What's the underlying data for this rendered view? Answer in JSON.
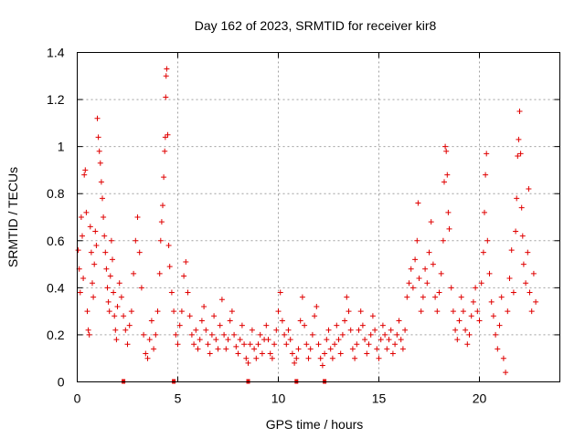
{
  "chart_data": {
    "type": "scatter",
    "title": "Day 162 of 2023, SRMTID for receiver kir8",
    "xlabel": "GPS time / hours",
    "ylabel": "SRMTID / TECUs",
    "xlim": [
      0,
      24
    ],
    "ylim": [
      0,
      1.4
    ],
    "xticks": [
      0,
      5,
      10,
      15,
      20
    ],
    "yticks": [
      0,
      0.2,
      0.4,
      0.6,
      0.8,
      1,
      1.2,
      1.4
    ],
    "xtick_labels": [
      "0",
      "5",
      "10",
      "15",
      "20"
    ],
    "ytick_labels": [
      "0",
      "0.2",
      "0.4",
      "0.6",
      "0.8",
      "1",
      "1.2",
      "1.4"
    ],
    "grid": true,
    "marker": "+",
    "color": "#e00000",
    "series": [
      {
        "name": "SRMTID",
        "points": [
          [
            0.05,
            0.56
          ],
          [
            0.1,
            0.48
          ],
          [
            0.15,
            0.38
          ],
          [
            0.2,
            0.7
          ],
          [
            0.25,
            0.62
          ],
          [
            0.3,
            0.44
          ],
          [
            0.35,
            0.88
          ],
          [
            0.4,
            0.9
          ],
          [
            0.45,
            0.72
          ],
          [
            0.5,
            0.3
          ],
          [
            0.55,
            0.22
          ],
          [
            0.6,
            0.2
          ],
          [
            0.65,
            0.66
          ],
          [
            0.7,
            0.55
          ],
          [
            0.75,
            0.42
          ],
          [
            0.8,
            0.36
          ],
          [
            0.85,
            0.5
          ],
          [
            0.9,
            0.64
          ],
          [
            0.95,
            0.58
          ],
          [
            1.0,
            1.12
          ],
          [
            1.05,
            1.04
          ],
          [
            1.1,
            0.98
          ],
          [
            1.15,
            0.93
          ],
          [
            1.2,
            0.85
          ],
          [
            1.25,
            0.78
          ],
          [
            1.3,
            0.7
          ],
          [
            1.35,
            0.62
          ],
          [
            1.4,
            0.55
          ],
          [
            1.45,
            0.48
          ],
          [
            1.5,
            0.4
          ],
          [
            1.55,
            0.34
          ],
          [
            1.6,
            0.3
          ],
          [
            1.65,
            0.45
          ],
          [
            1.7,
            0.6
          ],
          [
            1.75,
            0.52
          ],
          [
            1.8,
            0.38
          ],
          [
            1.85,
            0.28
          ],
          [
            1.9,
            0.22
          ],
          [
            1.95,
            0.18
          ],
          [
            2.0,
            0.32
          ],
          [
            2.1,
            0.42
          ],
          [
            2.2,
            0.36
          ],
          [
            2.3,
            0.28
          ],
          [
            2.4,
            0.22
          ],
          [
            2.5,
            0.16
          ],
          [
            2.6,
            0.24
          ],
          [
            2.7,
            0.3
          ],
          [
            2.8,
            0.46
          ],
          [
            2.9,
            0.6
          ],
          [
            3.0,
            0.7
          ],
          [
            3.1,
            0.55
          ],
          [
            3.2,
            0.4
          ],
          [
            3.3,
            0.2
          ],
          [
            3.4,
            0.12
          ],
          [
            3.5,
            0.1
          ],
          [
            3.6,
            0.18
          ],
          [
            3.7,
            0.26
          ],
          [
            3.8,
            0.14
          ],
          [
            3.9,
            0.2
          ],
          [
            4.0,
            0.3
          ],
          [
            4.1,
            0.46
          ],
          [
            4.15,
            0.6
          ],
          [
            4.2,
            0.68
          ],
          [
            4.25,
            0.75
          ],
          [
            4.3,
            0.87
          ],
          [
            4.35,
            0.98
          ],
          [
            4.38,
            1.04
          ],
          [
            4.4,
            1.21
          ],
          [
            4.42,
            1.3
          ],
          [
            4.45,
            1.33
          ],
          [
            4.5,
            1.05
          ],
          [
            4.55,
            0.58
          ],
          [
            4.6,
            0.49
          ],
          [
            4.7,
            0.38
          ],
          [
            4.8,
            0.3
          ],
          [
            4.9,
            0.2
          ],
          [
            5.0,
            0.16
          ],
          [
            5.1,
            0.24
          ],
          [
            5.2,
            0.3
          ],
          [
            5.3,
            0.45
          ],
          [
            5.4,
            0.51
          ],
          [
            5.5,
            0.38
          ],
          [
            5.6,
            0.28
          ],
          [
            5.7,
            0.2
          ],
          [
            5.8,
            0.16
          ],
          [
            5.9,
            0.22
          ],
          [
            6.0,
            0.14
          ],
          [
            6.1,
            0.18
          ],
          [
            6.2,
            0.26
          ],
          [
            6.3,
            0.32
          ],
          [
            6.4,
            0.22
          ],
          [
            6.5,
            0.16
          ],
          [
            6.6,
            0.12
          ],
          [
            6.7,
            0.2
          ],
          [
            6.8,
            0.28
          ],
          [
            6.9,
            0.18
          ],
          [
            7.0,
            0.14
          ],
          [
            7.1,
            0.24
          ],
          [
            7.2,
            0.35
          ],
          [
            7.3,
            0.2
          ],
          [
            7.4,
            0.14
          ],
          [
            7.5,
            0.18
          ],
          [
            7.6,
            0.26
          ],
          [
            7.7,
            0.3
          ],
          [
            7.8,
            0.2
          ],
          [
            7.9,
            0.15
          ],
          [
            8.0,
            0.12
          ],
          [
            8.1,
            0.18
          ],
          [
            8.2,
            0.24
          ],
          [
            8.3,
            0.16
          ],
          [
            8.4,
            0.1
          ],
          [
            8.5,
            0.08
          ],
          [
            8.6,
            0.16
          ],
          [
            8.7,
            0.22
          ],
          [
            8.8,
            0.14
          ],
          [
            8.9,
            0.1
          ],
          [
            9.0,
            0.16
          ],
          [
            9.1,
            0.2
          ],
          [
            9.2,
            0.12
          ],
          [
            9.3,
            0.18
          ],
          [
            9.4,
            0.24
          ],
          [
            9.5,
            0.18
          ],
          [
            9.6,
            0.12
          ],
          [
            9.7,
            0.1
          ],
          [
            9.8,
            0.16
          ],
          [
            9.9,
            0.22
          ],
          [
            10.0,
            0.3
          ],
          [
            10.1,
            0.38
          ],
          [
            10.2,
            0.26
          ],
          [
            10.3,
            0.2
          ],
          [
            10.4,
            0.16
          ],
          [
            10.5,
            0.22
          ],
          [
            10.6,
            0.18
          ],
          [
            10.7,
            0.12
          ],
          [
            10.8,
            0.08
          ],
          [
            10.9,
            0.1
          ],
          [
            11.0,
            0.14
          ],
          [
            11.1,
            0.26
          ],
          [
            11.2,
            0.36
          ],
          [
            11.3,
            0.24
          ],
          [
            11.4,
            0.16
          ],
          [
            11.5,
            0.1
          ],
          [
            11.6,
            0.14
          ],
          [
            11.7,
            0.2
          ],
          [
            11.8,
            0.28
          ],
          [
            11.9,
            0.32
          ],
          [
            12.0,
            0.16
          ],
          [
            12.1,
            0.1
          ],
          [
            12.2,
            0.07
          ],
          [
            12.3,
            0.12
          ],
          [
            12.4,
            0.18
          ],
          [
            12.5,
            0.22
          ],
          [
            12.6,
            0.14
          ],
          [
            12.7,
            0.1
          ],
          [
            12.8,
            0.16
          ],
          [
            12.9,
            0.24
          ],
          [
            13.0,
            0.18
          ],
          [
            13.1,
            0.12
          ],
          [
            13.2,
            0.2
          ],
          [
            13.3,
            0.26
          ],
          [
            13.4,
            0.36
          ],
          [
            13.5,
            0.3
          ],
          [
            13.6,
            0.22
          ],
          [
            13.7,
            0.14
          ],
          [
            13.8,
            0.1
          ],
          [
            13.9,
            0.16
          ],
          [
            14.0,
            0.22
          ],
          [
            14.1,
            0.3
          ],
          [
            14.2,
            0.24
          ],
          [
            14.3,
            0.18
          ],
          [
            14.4,
            0.12
          ],
          [
            14.5,
            0.16
          ],
          [
            14.6,
            0.2
          ],
          [
            14.7,
            0.28
          ],
          [
            14.8,
            0.22
          ],
          [
            14.9,
            0.14
          ],
          [
            15.0,
            0.1
          ],
          [
            15.1,
            0.18
          ],
          [
            15.2,
            0.24
          ],
          [
            15.3,
            0.2
          ],
          [
            15.4,
            0.14
          ],
          [
            15.5,
            0.18
          ],
          [
            15.6,
            0.22
          ],
          [
            15.7,
            0.12
          ],
          [
            15.8,
            0.16
          ],
          [
            15.9,
            0.2
          ],
          [
            16.0,
            0.26
          ],
          [
            16.1,
            0.18
          ],
          [
            16.2,
            0.14
          ],
          [
            16.3,
            0.22
          ],
          [
            16.4,
            0.36
          ],
          [
            16.5,
            0.42
          ],
          [
            16.6,
            0.48
          ],
          [
            16.7,
            0.4
          ],
          [
            16.8,
            0.52
          ],
          [
            16.9,
            0.6
          ],
          [
            16.95,
            0.76
          ],
          [
            17.0,
            0.44
          ],
          [
            17.1,
            0.3
          ],
          [
            17.2,
            0.36
          ],
          [
            17.3,
            0.48
          ],
          [
            17.4,
            0.42
          ],
          [
            17.5,
            0.55
          ],
          [
            17.6,
            0.68
          ],
          [
            17.7,
            0.5
          ],
          [
            17.8,
            0.36
          ],
          [
            17.9,
            0.3
          ],
          [
            18.0,
            0.38
          ],
          [
            18.1,
            0.46
          ],
          [
            18.2,
            0.6
          ],
          [
            18.25,
            0.85
          ],
          [
            18.3,
            1.0
          ],
          [
            18.35,
            0.98
          ],
          [
            18.4,
            0.88
          ],
          [
            18.45,
            0.72
          ],
          [
            18.5,
            0.65
          ],
          [
            18.6,
            0.4
          ],
          [
            18.7,
            0.3
          ],
          [
            18.8,
            0.22
          ],
          [
            18.9,
            0.18
          ],
          [
            19.0,
            0.26
          ],
          [
            19.1,
            0.36
          ],
          [
            19.2,
            0.3
          ],
          [
            19.3,
            0.22
          ],
          [
            19.4,
            0.16
          ],
          [
            19.5,
            0.2
          ],
          [
            19.6,
            0.28
          ],
          [
            19.7,
            0.34
          ],
          [
            19.8,
            0.4
          ],
          [
            19.9,
            0.3
          ],
          [
            20.0,
            0.26
          ],
          [
            20.1,
            0.42
          ],
          [
            20.2,
            0.55
          ],
          [
            20.25,
            0.72
          ],
          [
            20.3,
            0.88
          ],
          [
            20.35,
            0.97
          ],
          [
            20.4,
            0.6
          ],
          [
            20.5,
            0.46
          ],
          [
            20.6,
            0.34
          ],
          [
            20.7,
            0.28
          ],
          [
            20.8,
            0.2
          ],
          [
            20.9,
            0.14
          ],
          [
            21.0,
            0.24
          ],
          [
            21.1,
            0.36
          ],
          [
            21.2,
            0.1
          ],
          [
            21.3,
            0.04
          ],
          [
            21.4,
            0.3
          ],
          [
            21.5,
            0.44
          ],
          [
            21.6,
            0.56
          ],
          [
            21.7,
            0.38
          ],
          [
            21.8,
            0.64
          ],
          [
            21.85,
            0.78
          ],
          [
            21.9,
            0.96
          ],
          [
            21.95,
            1.03
          ],
          [
            22.0,
            1.15
          ],
          [
            22.05,
            0.97
          ],
          [
            22.1,
            0.74
          ],
          [
            22.15,
            0.62
          ],
          [
            22.2,
            0.5
          ],
          [
            22.3,
            0.42
          ],
          [
            22.4,
            0.55
          ],
          [
            22.45,
            0.82
          ],
          [
            22.5,
            0.38
          ],
          [
            22.6,
            0.3
          ],
          [
            22.7,
            0.46
          ],
          [
            22.8,
            0.34
          ]
        ]
      }
    ],
    "baseline_markers": [
      2.3,
      4.8,
      8.5,
      10.9,
      12.3
    ]
  }
}
